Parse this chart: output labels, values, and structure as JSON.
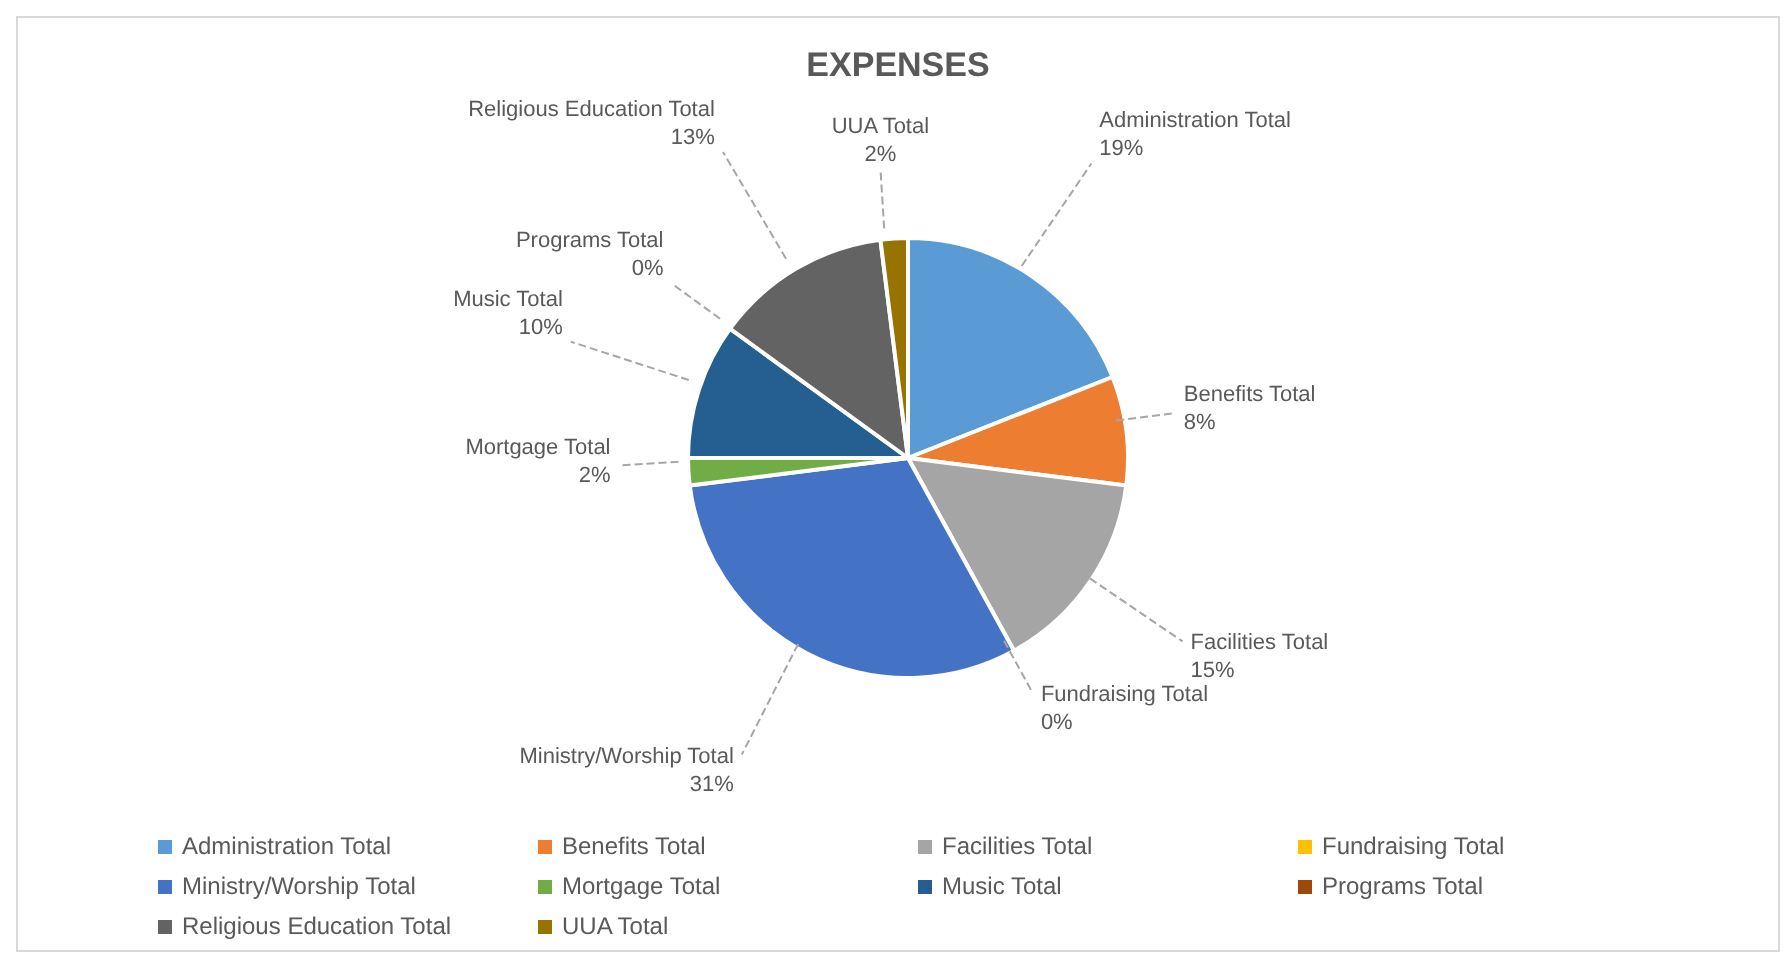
{
  "chart_data": {
    "type": "pie",
    "title": "EXPENSES",
    "categories": [
      "Administration Total",
      "Benefits Total",
      "Facilities Total",
      "Fundraising Total",
      "Ministry/Worship Total",
      "Mortgage Total",
      "Music Total",
      "Programs Total",
      "Religious Education Total",
      "UUA Total"
    ],
    "values": [
      19,
      8,
      15,
      0,
      31,
      2,
      10,
      0,
      13,
      2
    ],
    "value_labels": [
      "19%",
      "8%",
      "15%",
      "0%",
      "31%",
      "2%",
      "10%",
      "0%",
      "13%",
      "2%"
    ],
    "colors": [
      "#5b9bd5",
      "#ed7d31",
      "#a5a5a5",
      "#ffc000",
      "#4472c4",
      "#70ad47",
      "#255e91",
      "#9e480e",
      "#636363",
      "#997300"
    ],
    "legend": "bottom"
  }
}
